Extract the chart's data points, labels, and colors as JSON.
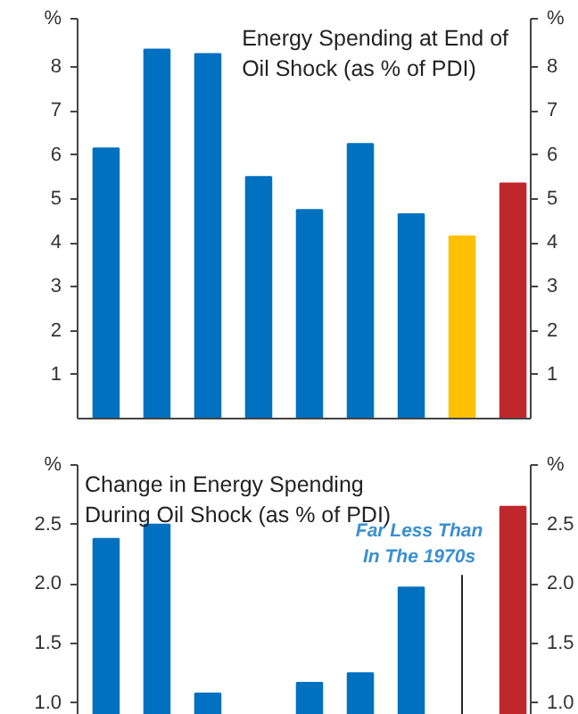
{
  "chart_data": [
    {
      "type": "bar",
      "title": "Energy Spending at End of Oil Shock (as % of PDI)",
      "ylabel": "%",
      "y2label": "%",
      "categories": [
        null,
        null,
        null,
        null,
        null,
        null,
        null,
        null,
        null
      ],
      "values": [
        6.15,
        8.4,
        8.3,
        5.5,
        4.75,
        6.25,
        4.65,
        4.15,
        5.35
      ],
      "colors": [
        "#0070c0",
        "#0070c0",
        "#0070c0",
        "#0070c0",
        "#0070c0",
        "#0070c0",
        "#0070c0",
        "#ffc000",
        "#c0272d"
      ],
      "ylim": [
        0,
        9.1
      ],
      "yticks": [
        1,
        2,
        3,
        4,
        5,
        6,
        7,
        8
      ],
      "y2lim": [
        0,
        9.1
      ],
      "y2ticks": [
        1,
        2,
        3,
        4,
        5,
        6,
        7,
        8
      ],
      "tick_labels": "y",
      "grid": false,
      "legend": false
    },
    {
      "type": "bar",
      "title": "Change in Energy Spending During Oil Shock (as % of PDI)",
      "ylabel": "%",
      "y2label": "%",
      "categories": [
        null,
        null,
        null,
        null,
        null,
        null,
        null,
        null,
        null
      ],
      "values": [
        2.38,
        2.5,
        1.08,
        null,
        1.17,
        1.25,
        1.97,
        null,
        2.65
      ],
      "colors": [
        "#0070c0",
        "#0070c0",
        "#0070c0",
        "#0070c0",
        "#0070c0",
        "#0070c0",
        "#0070c0",
        "#ffc000",
        "#c0272d"
      ],
      "annotations": [
        "Far Less Than In The 1970s"
      ],
      "ylim": [
        0.9,
        3.0
      ],
      "yticks": [
        {
          "value": 1.0,
          "label": "1.0"
        },
        {
          "value": 1.5,
          "label": "1.5"
        },
        {
          "value": 2.0,
          "label": "2.0"
        },
        {
          "value": 2.5,
          "label": "2.5"
        }
      ],
      "y2lim": [
        0.9,
        3.0
      ],
      "y2ticks": [
        {
          "value": 1.0,
          "label": "1.0"
        },
        {
          "value": 1.5,
          "label": "1.5"
        },
        {
          "value": 2.0,
          "label": "2.0"
        },
        {
          "value": 2.5,
          "label": "2.5"
        }
      ],
      "tick_labels": "y",
      "grid": false,
      "legend": false
    }
  ]
}
